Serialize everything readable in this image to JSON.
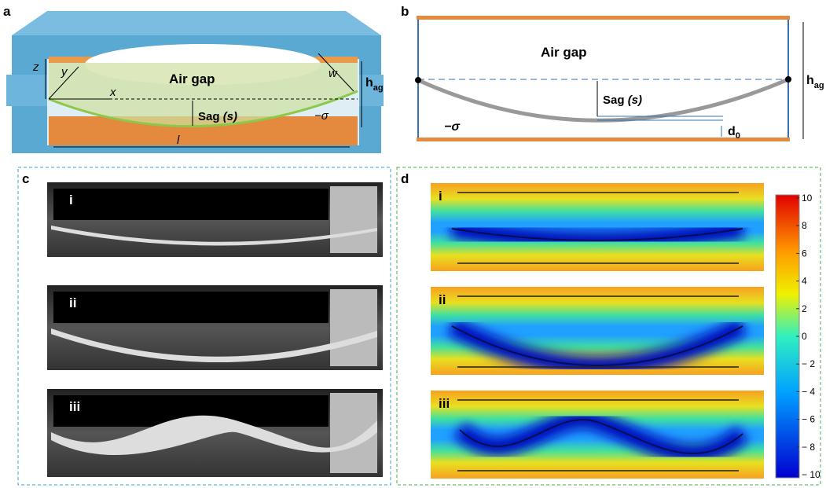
{
  "panel_a": {
    "label": "a",
    "z": "z",
    "y": "y",
    "x": "x",
    "w": "w",
    "air_gap": "Air gap",
    "sag": "Sag",
    "sag_var": "(s)",
    "h": "h",
    "h_sub": "ag",
    "l": "l",
    "sigma": "−σ"
  },
  "panel_b": {
    "label": "b",
    "air_gap": "Air gap",
    "sag": "Sag",
    "sag_var": "(s)",
    "sigma": "−σ",
    "h": "h",
    "h_sub": "ag",
    "d": "d",
    "d_sub": "0"
  },
  "panel_c": {
    "label": "c",
    "images": [
      "i",
      "ii",
      "iii"
    ]
  },
  "panel_d": {
    "label": "d",
    "images": [
      "i",
      "ii",
      "iii"
    ],
    "colorbar_ticks": [
      10,
      8,
      6,
      4,
      2,
      0,
      {
        "value": -2,
        "label": "− 2"
      },
      {
        "value": -4,
        "label": "− 4"
      },
      {
        "value": -6,
        "label": "− 6"
      },
      {
        "value": -8,
        "label": "− 8"
      },
      {
        "value": -10,
        "label": "− 10"
      }
    ]
  }
}
